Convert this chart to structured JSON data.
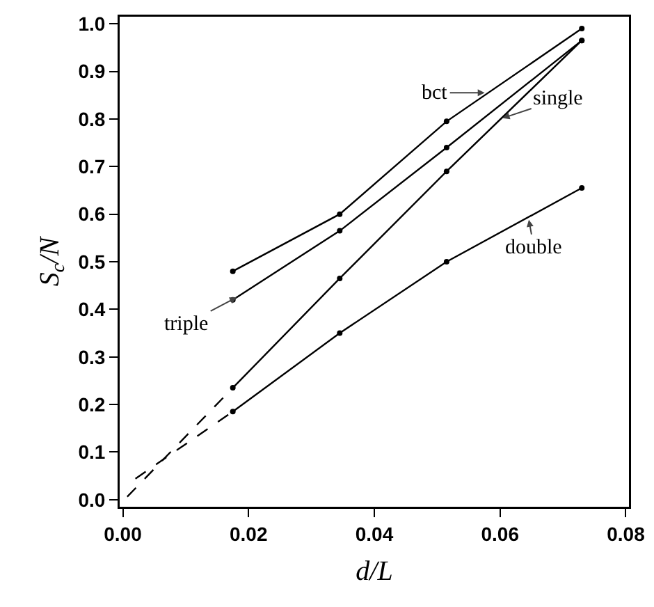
{
  "chart_data": {
    "type": "line",
    "xlabel": "d/L",
    "ylabel": "S$_{c}$/N",
    "xlim": [
      -0.0005,
      0.0805
    ],
    "ylim": [
      -0.015,
      1.015
    ],
    "xticks": [
      {
        "value": 0,
        "label": "0.00"
      },
      {
        "value": 0.02,
        "label": "0.02"
      },
      {
        "value": 0.04,
        "label": "0.04"
      },
      {
        "value": 0.06,
        "label": "0.06"
      },
      {
        "value": 0.08,
        "label": "0.08"
      }
    ],
    "yticks": [
      {
        "value": 0,
        "label": "0.0"
      },
      0.1,
      0.2,
      0.3,
      0.4,
      0.5,
      0.6,
      0.7,
      0.8,
      0.9,
      {
        "value": 1,
        "label": "1.0"
      }
    ],
    "x": [
      0.0175,
      0.0345,
      0.0515,
      0.073
    ],
    "grid": false,
    "marker": "circle",
    "line_style": "solid",
    "series": [
      {
        "color": "#000000",
        "values": [
          0.48,
          0.6,
          0.795,
          0.99
        ]
      },
      {
        "color": "#000000",
        "values": [
          0.42,
          0.565,
          0.74,
          0.965
        ]
      },
      {
        "color": "#000000",
        "values": [
          0.235,
          0.465,
          0.69,
          0.965
        ]
      },
      {
        "color": "#000000",
        "values": [
          0.185,
          0.35,
          0.5,
          0.655
        ]
      },
      {
        "color": "#000000",
        "x": [
          0.0007,
          0.0175
        ],
        "values": [
          0.006,
          0.235
        ],
        "line_style": "dashed",
        "marker": "none"
      },
      {
        "color": "#000000",
        "x": [
          0.002,
          0.0175
        ],
        "values": [
          0.044,
          0.185
        ],
        "line_style": "dashed",
        "marker": "none"
      }
    ],
    "annotations": [
      {
        "text": "bct",
        "x": 0.058,
        "y": 0.855
      },
      {
        "text": "single",
        "x": 0.06,
        "y": 0.8
      },
      {
        "text": "triple",
        "x": 0.0185,
        "y": 0.428
      },
      {
        "text": "double",
        "x": 0.0645,
        "y": 0.594
      }
    ]
  }
}
